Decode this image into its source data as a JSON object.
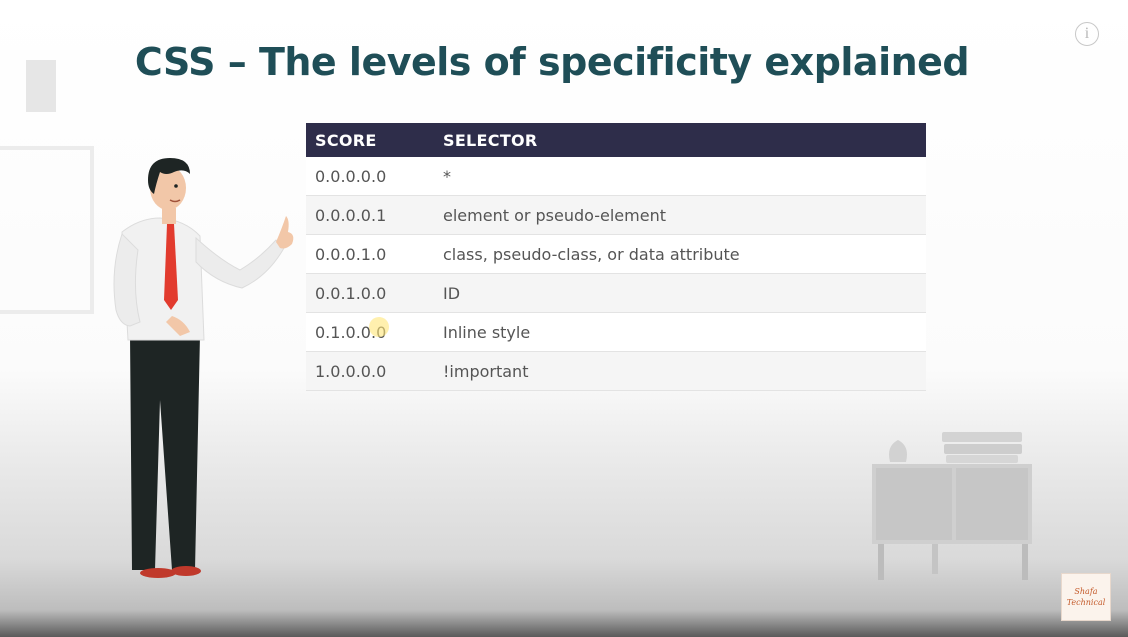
{
  "slide": {
    "title": "CSS – The levels of specificity explained",
    "info_icon_glyph": "i"
  },
  "table": {
    "headers": {
      "score": "SCORE",
      "selector": "SELECTOR"
    },
    "rows": [
      {
        "score": "0.0.0.0.0",
        "selector": "*"
      },
      {
        "score": "0.0.0.0.1",
        "selector": "element or pseudo-element"
      },
      {
        "score": "0.0.0.1.0",
        "selector": "class, pseudo-class, or data attribute"
      },
      {
        "score": "0.0.1.0.0",
        "selector": "ID"
      },
      {
        "score": "0.1.0.0.0",
        "selector": "Inline style"
      },
      {
        "score": "1.0.0.0.0",
        "selector": "!important"
      }
    ]
  },
  "watermark": {
    "line1": "Shafa",
    "line2": "Technical"
  },
  "colors": {
    "title": "#1f4e57",
    "header_bg": "#2e2d4a",
    "tie": "#e23b2e"
  },
  "icons": {
    "info": "info-icon",
    "cursor": "mouse-cursor-icon"
  }
}
